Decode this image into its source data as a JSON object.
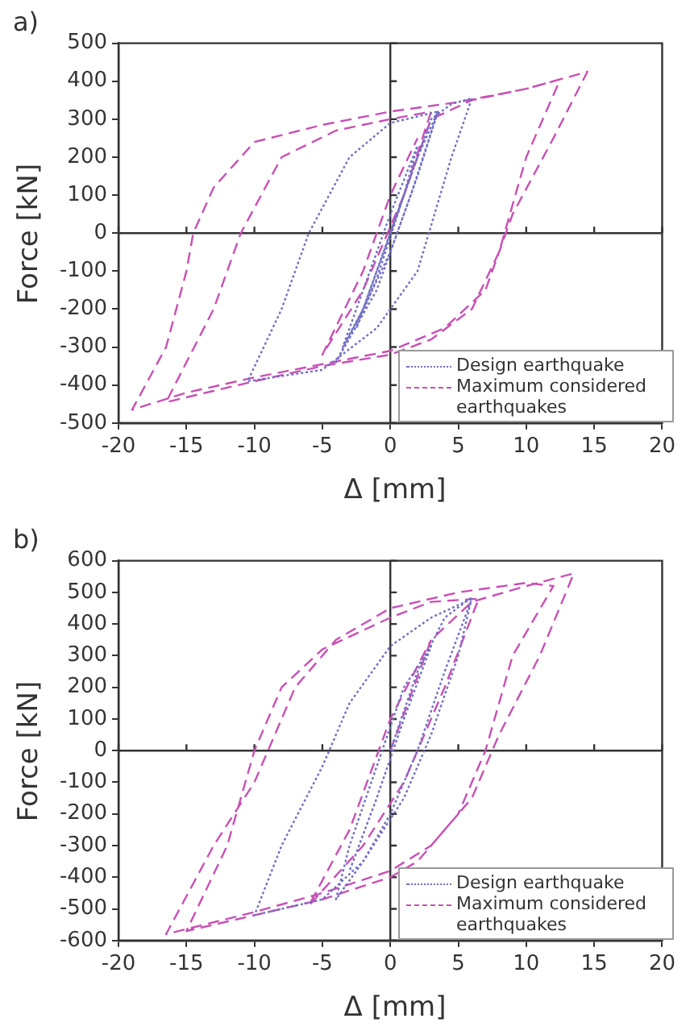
{
  "chart_data": [
    {
      "type": "line",
      "title": "a)",
      "xlabel": "Δ [mm]",
      "ylabel": "Force [kN]",
      "xlim": [
        -20,
        20
      ],
      "xticks": [
        -20,
        -15,
        -10,
        -5,
        0,
        5,
        10,
        15,
        20
      ],
      "ylim": [
        -500,
        500
      ],
      "yticks": [
        -500,
        -400,
        -300,
        -200,
        -100,
        0,
        100,
        200,
        300,
        400,
        500
      ],
      "legend": "bottom right",
      "marker": "none",
      "series": [
        {
          "name": "Design earthquake",
          "color": "#7070c4",
          "line_style": "dotted",
          "x": [
            0,
            2,
            3.5,
            1.5,
            -1,
            -4,
            -2,
            1,
            3,
            4.5,
            6,
            4.5,
            2,
            -1,
            -5,
            -10.5,
            -8,
            -6,
            -3,
            0,
            3.5,
            2,
            0,
            -2,
            -3.5,
            -2,
            0,
            2,
            1,
            -1,
            -2.5,
            -1,
            1
          ],
          "values": [
            0,
            200,
            320,
            100,
            -150,
            -340,
            -200,
            100,
            300,
            340,
            355,
            200,
            -100,
            -250,
            -360,
            -390,
            -200,
            0,
            200,
            290,
            320,
            150,
            -50,
            -200,
            -300,
            -150,
            50,
            230,
            100,
            -100,
            -250,
            -120,
            100
          ]
        },
        {
          "name": "Maximum considered earthquakes",
          "color": "#c850b4",
          "line_style": "dashed",
          "x": [
            0,
            3,
            6,
            10,
            14.5,
            12,
            9,
            8.5,
            7,
            4,
            0,
            -5,
            -10,
            -15,
            -19,
            -16.5,
            -15,
            -14.5,
            -13,
            -10,
            -5,
            0,
            5,
            10,
            12.5,
            10,
            8,
            6,
            3,
            0,
            -5,
            -10,
            -16.5,
            -13,
            -11,
            -8,
            -4,
            0,
            3,
            1,
            -2,
            -5,
            -2,
            0,
            2
          ],
          "values": [
            0,
            300,
            350,
            380,
            425,
            250,
            50,
            0,
            -150,
            -250,
            -310,
            -345,
            -380,
            -420,
            -465,
            -300,
            -100,
            0,
            120,
            240,
            285,
            320,
            345,
            380,
            405,
            200,
            -50,
            -200,
            -280,
            -320,
            -350,
            -390,
            -445,
            -200,
            0,
            200,
            270,
            300,
            320,
            100,
            -150,
            -320,
            -100,
            100,
            250
          ]
        }
      ]
    },
    {
      "type": "line",
      "title": "b)",
      "xlabel": "Δ [mm]",
      "ylabel": "Force [kN]",
      "xlim": [
        -20,
        20
      ],
      "xticks": [
        -20,
        -15,
        -10,
        -5,
        0,
        5,
        10,
        15,
        20
      ],
      "ylim": [
        -600,
        600
      ],
      "yticks": [
        -600,
        -500,
        -400,
        -300,
        -200,
        -100,
        0,
        100,
        200,
        300,
        400,
        500,
        600
      ],
      "legend": "bottom right",
      "marker": "none",
      "series": [
        {
          "name": "Design earthquake",
          "color": "#7070c4",
          "line_style": "dotted",
          "x": [
            0,
            2,
            4,
            6,
            5,
            3,
            1,
            -2,
            -5,
            -10,
            -8,
            -5,
            -3,
            0,
            3,
            6,
            4,
            2,
            0,
            -2,
            -4,
            -3,
            -1,
            1,
            3,
            1,
            -1,
            -3,
            -1,
            1
          ],
          "values": [
            0,
            250,
            420,
            485,
            300,
            50,
            -150,
            -350,
            -470,
            -520,
            -300,
            -50,
            150,
            330,
            420,
            480,
            250,
            0,
            -200,
            -350,
            -470,
            -300,
            -50,
            200,
            330,
            100,
            -150,
            -380,
            -150,
            100
          ]
        },
        {
          "name": "Maximum considered earthquakes",
          "color": "#c850b4",
          "line_style": "dashed",
          "x": [
            0,
            3,
            6,
            10,
            13.5,
            11,
            8,
            7.5,
            6,
            3,
            0,
            -5,
            -10,
            -16.5,
            -13,
            -10,
            -9,
            -7,
            -4,
            0,
            5,
            10,
            12,
            9,
            7,
            5,
            2,
            0,
            -5,
            -10,
            -15,
            -12,
            -10,
            -8,
            -5,
            0,
            3,
            6.5,
            4,
            1,
            -2,
            -6,
            -3,
            0,
            3
          ],
          "values": [
            0,
            350,
            470,
            520,
            560,
            300,
            50,
            0,
            -150,
            -300,
            -380,
            -450,
            -510,
            -580,
            -300,
            -100,
            0,
            200,
            350,
            450,
            500,
            530,
            520,
            300,
            0,
            -200,
            -350,
            -400,
            -470,
            -520,
            -570,
            -300,
            0,
            200,
            320,
            420,
            470,
            480,
            200,
            -100,
            -300,
            -490,
            -250,
            100,
            350
          ]
        }
      ]
    }
  ]
}
